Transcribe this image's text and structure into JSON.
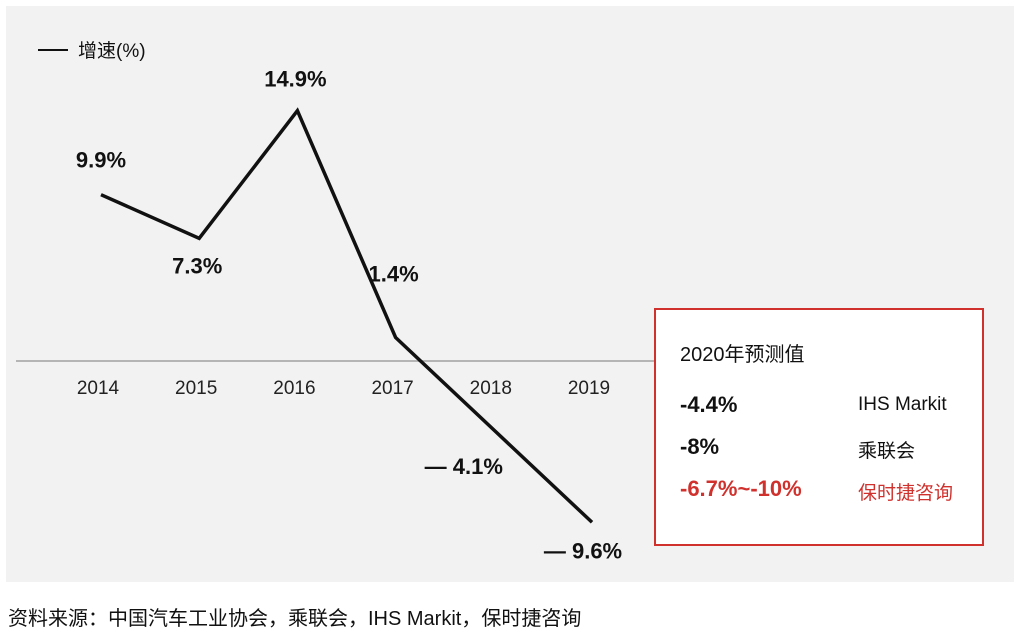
{
  "chart_data": {
    "type": "line",
    "categories": [
      "2014",
      "2015",
      "2016",
      "2017",
      "2018",
      "2019"
    ],
    "series": [
      {
        "name": "增速(%)",
        "values": [
          9.9,
          7.3,
          14.9,
          1.4,
          -4.1,
          -9.6
        ]
      }
    ],
    "data_labels": [
      "9.9%",
      "7.3%",
      "14.9%",
      "1.4%",
      "— 4.1%",
      "— 9.6%"
    ],
    "legend": "top-left",
    "grid": false,
    "colors": {
      "line": "#111111",
      "zero_line": "#b5b5b5",
      "highlight": "#d0312d",
      "panel_bg": "#f2f2f2"
    }
  },
  "legend_label": "增速(%)",
  "forecast": {
    "title": "2020年预测值",
    "rows": [
      {
        "value": "-4.4%",
        "source": "IHS Markit",
        "highlight": false
      },
      {
        "value": "-8%",
        "source": "乘联会",
        "highlight": false
      },
      {
        "value": "-6.7%~-10%",
        "source": "保时捷咨询",
        "highlight": true
      }
    ]
  },
  "source_note": "资料来源：中国汽车工业协会，乘联会，IHS Markit，保时捷咨询"
}
